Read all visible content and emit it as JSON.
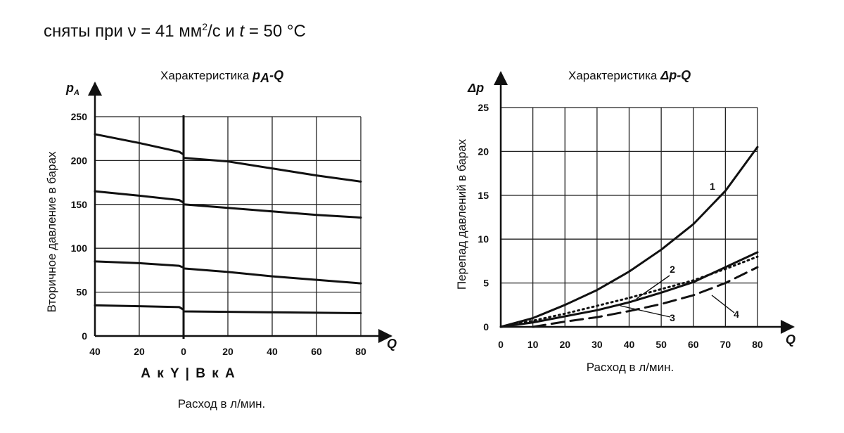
{
  "header": {
    "prefix": "сняты при ν = 41 мм",
    "sup": "2",
    "mid": "/с и ",
    "t": "t",
    "suffix": " = 50 °C"
  },
  "chart_data": [
    {
      "type": "line",
      "title": "Характеристика pA-Q",
      "title_prefix": "Характеристика ",
      "title_sym_main": "p",
      "title_sym_sub": "A",
      "title_sym_tail": "-Q",
      "y_symbol_main": "p",
      "y_symbol_sub": "A",
      "x_symbol": "Q",
      "ylabel": "Вторичное давление в барах",
      "xlabel": "Расход в л/мин.",
      "direction_label": "А к Y | В к А",
      "x_categories": [
        "40",
        "20",
        "0",
        "20",
        "40",
        "60",
        "80"
      ],
      "x_note": "left half: flow A to Y (40..0), right half: flow B to A (0..80)",
      "y_ticks": [
        0,
        50,
        100,
        150,
        200,
        250
      ],
      "ylim": [
        0,
        250
      ],
      "grid": true,
      "series": [
        {
          "left": [
            [
              40,
              230
            ],
            [
              20,
              220
            ],
            [
              2,
              210
            ],
            [
              0,
              207
            ]
          ],
          "right": [
            [
              0,
              203
            ],
            [
              20,
              199
            ],
            [
              40,
              191
            ],
            [
              60,
              183
            ],
            [
              80,
              176
            ]
          ]
        },
        {
          "left": [
            [
              40,
              165
            ],
            [
              20,
              160
            ],
            [
              2,
              155
            ],
            [
              0,
              152
            ]
          ],
          "right": [
            [
              0,
              150
            ],
            [
              20,
              146
            ],
            [
              40,
              142
            ],
            [
              60,
              138
            ],
            [
              80,
              135
            ]
          ]
        },
        {
          "left": [
            [
              40,
              85
            ],
            [
              20,
              83
            ],
            [
              2,
              80
            ],
            [
              0,
              78
            ]
          ],
          "right": [
            [
              0,
              77
            ],
            [
              20,
              73
            ],
            [
              40,
              68
            ],
            [
              60,
              64
            ],
            [
              80,
              60
            ]
          ]
        },
        {
          "left": [
            [
              40,
              35
            ],
            [
              20,
              34
            ],
            [
              2,
              33
            ],
            [
              0,
              30
            ]
          ],
          "right": [
            [
              0,
              28
            ],
            [
              20,
              27.5
            ],
            [
              40,
              27
            ],
            [
              60,
              26.5
            ],
            [
              80,
              26
            ]
          ]
        }
      ]
    },
    {
      "type": "line",
      "title": "Характеристика Δp-Q",
      "title_prefix": "Характеристика ",
      "title_sym": "Δp-Q",
      "y_symbol": "Δp",
      "x_symbol": "Q",
      "ylabel": "Перепад давлений в барах",
      "xlabel": "Расход в л/мин.",
      "x_ticks": [
        0,
        10,
        20,
        30,
        40,
        50,
        60,
        70,
        80
      ],
      "y_ticks": [
        0,
        5,
        10,
        15,
        20,
        25
      ],
      "xlim": [
        0,
        80
      ],
      "ylim": [
        0,
        25
      ],
      "grid": true,
      "series": [
        {
          "name": "1",
          "style": "solid",
          "points": [
            [
              0,
              0
            ],
            [
              10,
              1
            ],
            [
              20,
              2.5
            ],
            [
              30,
              4.2
            ],
            [
              40,
              6.3
            ],
            [
              50,
              8.8
            ],
            [
              60,
              11.7
            ],
            [
              70,
              15.5
            ],
            [
              80,
              20.5
            ]
          ]
        },
        {
          "name": "2",
          "style": "dotted",
          "points": [
            [
              0,
              0
            ],
            [
              10,
              0.7
            ],
            [
              20,
              1.5
            ],
            [
              30,
              2.4
            ],
            [
              40,
              3.3
            ],
            [
              50,
              4.3
            ],
            [
              60,
              5.3
            ],
            [
              70,
              6.6
            ],
            [
              80,
              8
            ]
          ]
        },
        {
          "name": "3",
          "style": "solid",
          "points": [
            [
              0,
              0
            ],
            [
              10,
              0.5
            ],
            [
              20,
              1.2
            ],
            [
              30,
              1.9
            ],
            [
              40,
              2.8
            ],
            [
              50,
              3.9
            ],
            [
              60,
              5.1
            ],
            [
              70,
              6.8
            ],
            [
              80,
              8.5
            ]
          ]
        },
        {
          "name": "4",
          "style": "dashed",
          "points": [
            [
              10,
              0
            ],
            [
              20,
              0.6
            ],
            [
              30,
              1.1
            ],
            [
              40,
              1.8
            ],
            [
              50,
              2.6
            ],
            [
              60,
              3.6
            ],
            [
              70,
              5
            ],
            [
              80,
              6.8
            ]
          ]
        }
      ]
    }
  ]
}
